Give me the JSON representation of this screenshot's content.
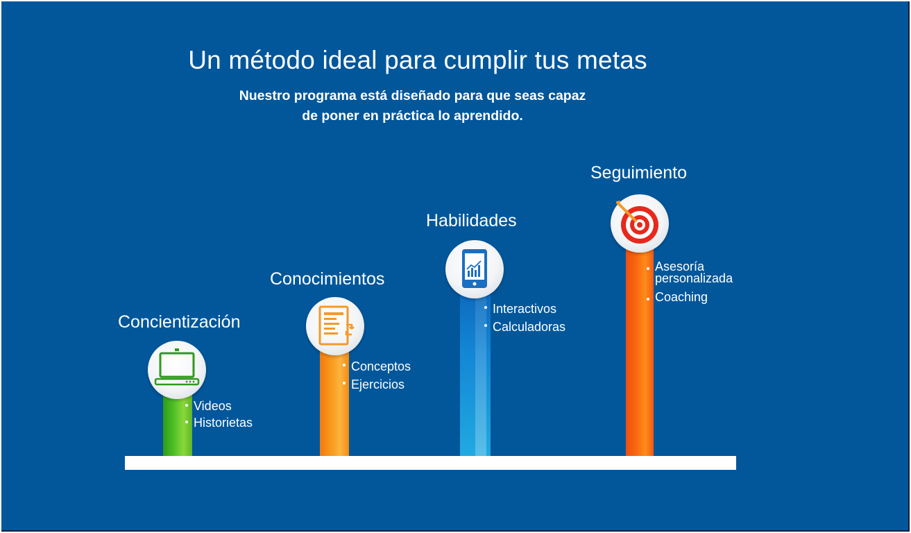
{
  "header": {
    "title": "Un método ideal para cumplir tus metas",
    "subtitle_line1": "Nuestro programa está diseñado para que seas capaz",
    "subtitle_line2": "de poner en práctica lo aprendido."
  },
  "stages": [
    {
      "title": "Concientización",
      "icon": "laptop-icon",
      "color": "#4cbf24",
      "items": [
        "Videos",
        "Historietas"
      ]
    },
    {
      "title": "Conocimientos",
      "icon": "document-icon",
      "color": "#f99a1e",
      "items": [
        "Conceptos",
        "Ejercicios"
      ]
    },
    {
      "title": "Habilidades",
      "icon": "tablet-chart-icon",
      "color": "#1488d6",
      "items": [
        "Interactivos",
        "Calculadoras"
      ]
    },
    {
      "title": "Seguimiento",
      "icon": "target-icon",
      "color": "#f86a10",
      "items": [
        "Asesoría personalizada",
        "Coaching"
      ]
    }
  ],
  "colors": {
    "background": "#02579b",
    "text": "#ffffff",
    "base": "#ffffff"
  }
}
